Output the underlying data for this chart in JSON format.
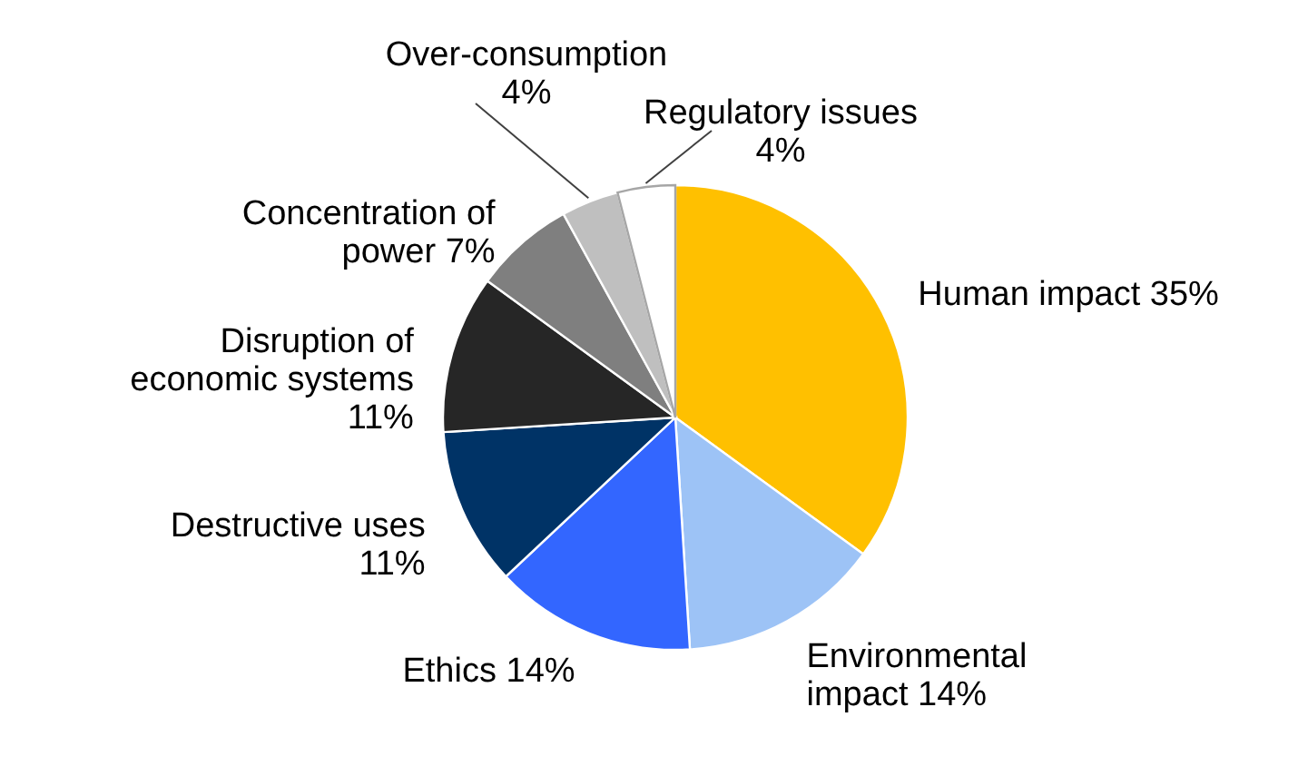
{
  "chart_data": {
    "type": "pie",
    "categories": [
      "Human impact",
      "Environmental impact",
      "Ethics",
      "Destructive uses",
      "Disruption of economic systems",
      "Concentration of power",
      "Over-consumption",
      "Regulatory issues"
    ],
    "values": [
      35,
      14,
      14,
      11,
      11,
      7,
      4,
      4
    ],
    "value_labels": [
      "35%",
      "14%",
      "14%",
      "11%",
      "11%",
      "7%",
      "4%",
      "4%"
    ],
    "colors": [
      "#ffc000",
      "#9dc3f6",
      "#3366ff",
      "#003366",
      "#262626",
      "#7f7f7f",
      "#bfbfbf",
      "#ffffff"
    ]
  }
}
